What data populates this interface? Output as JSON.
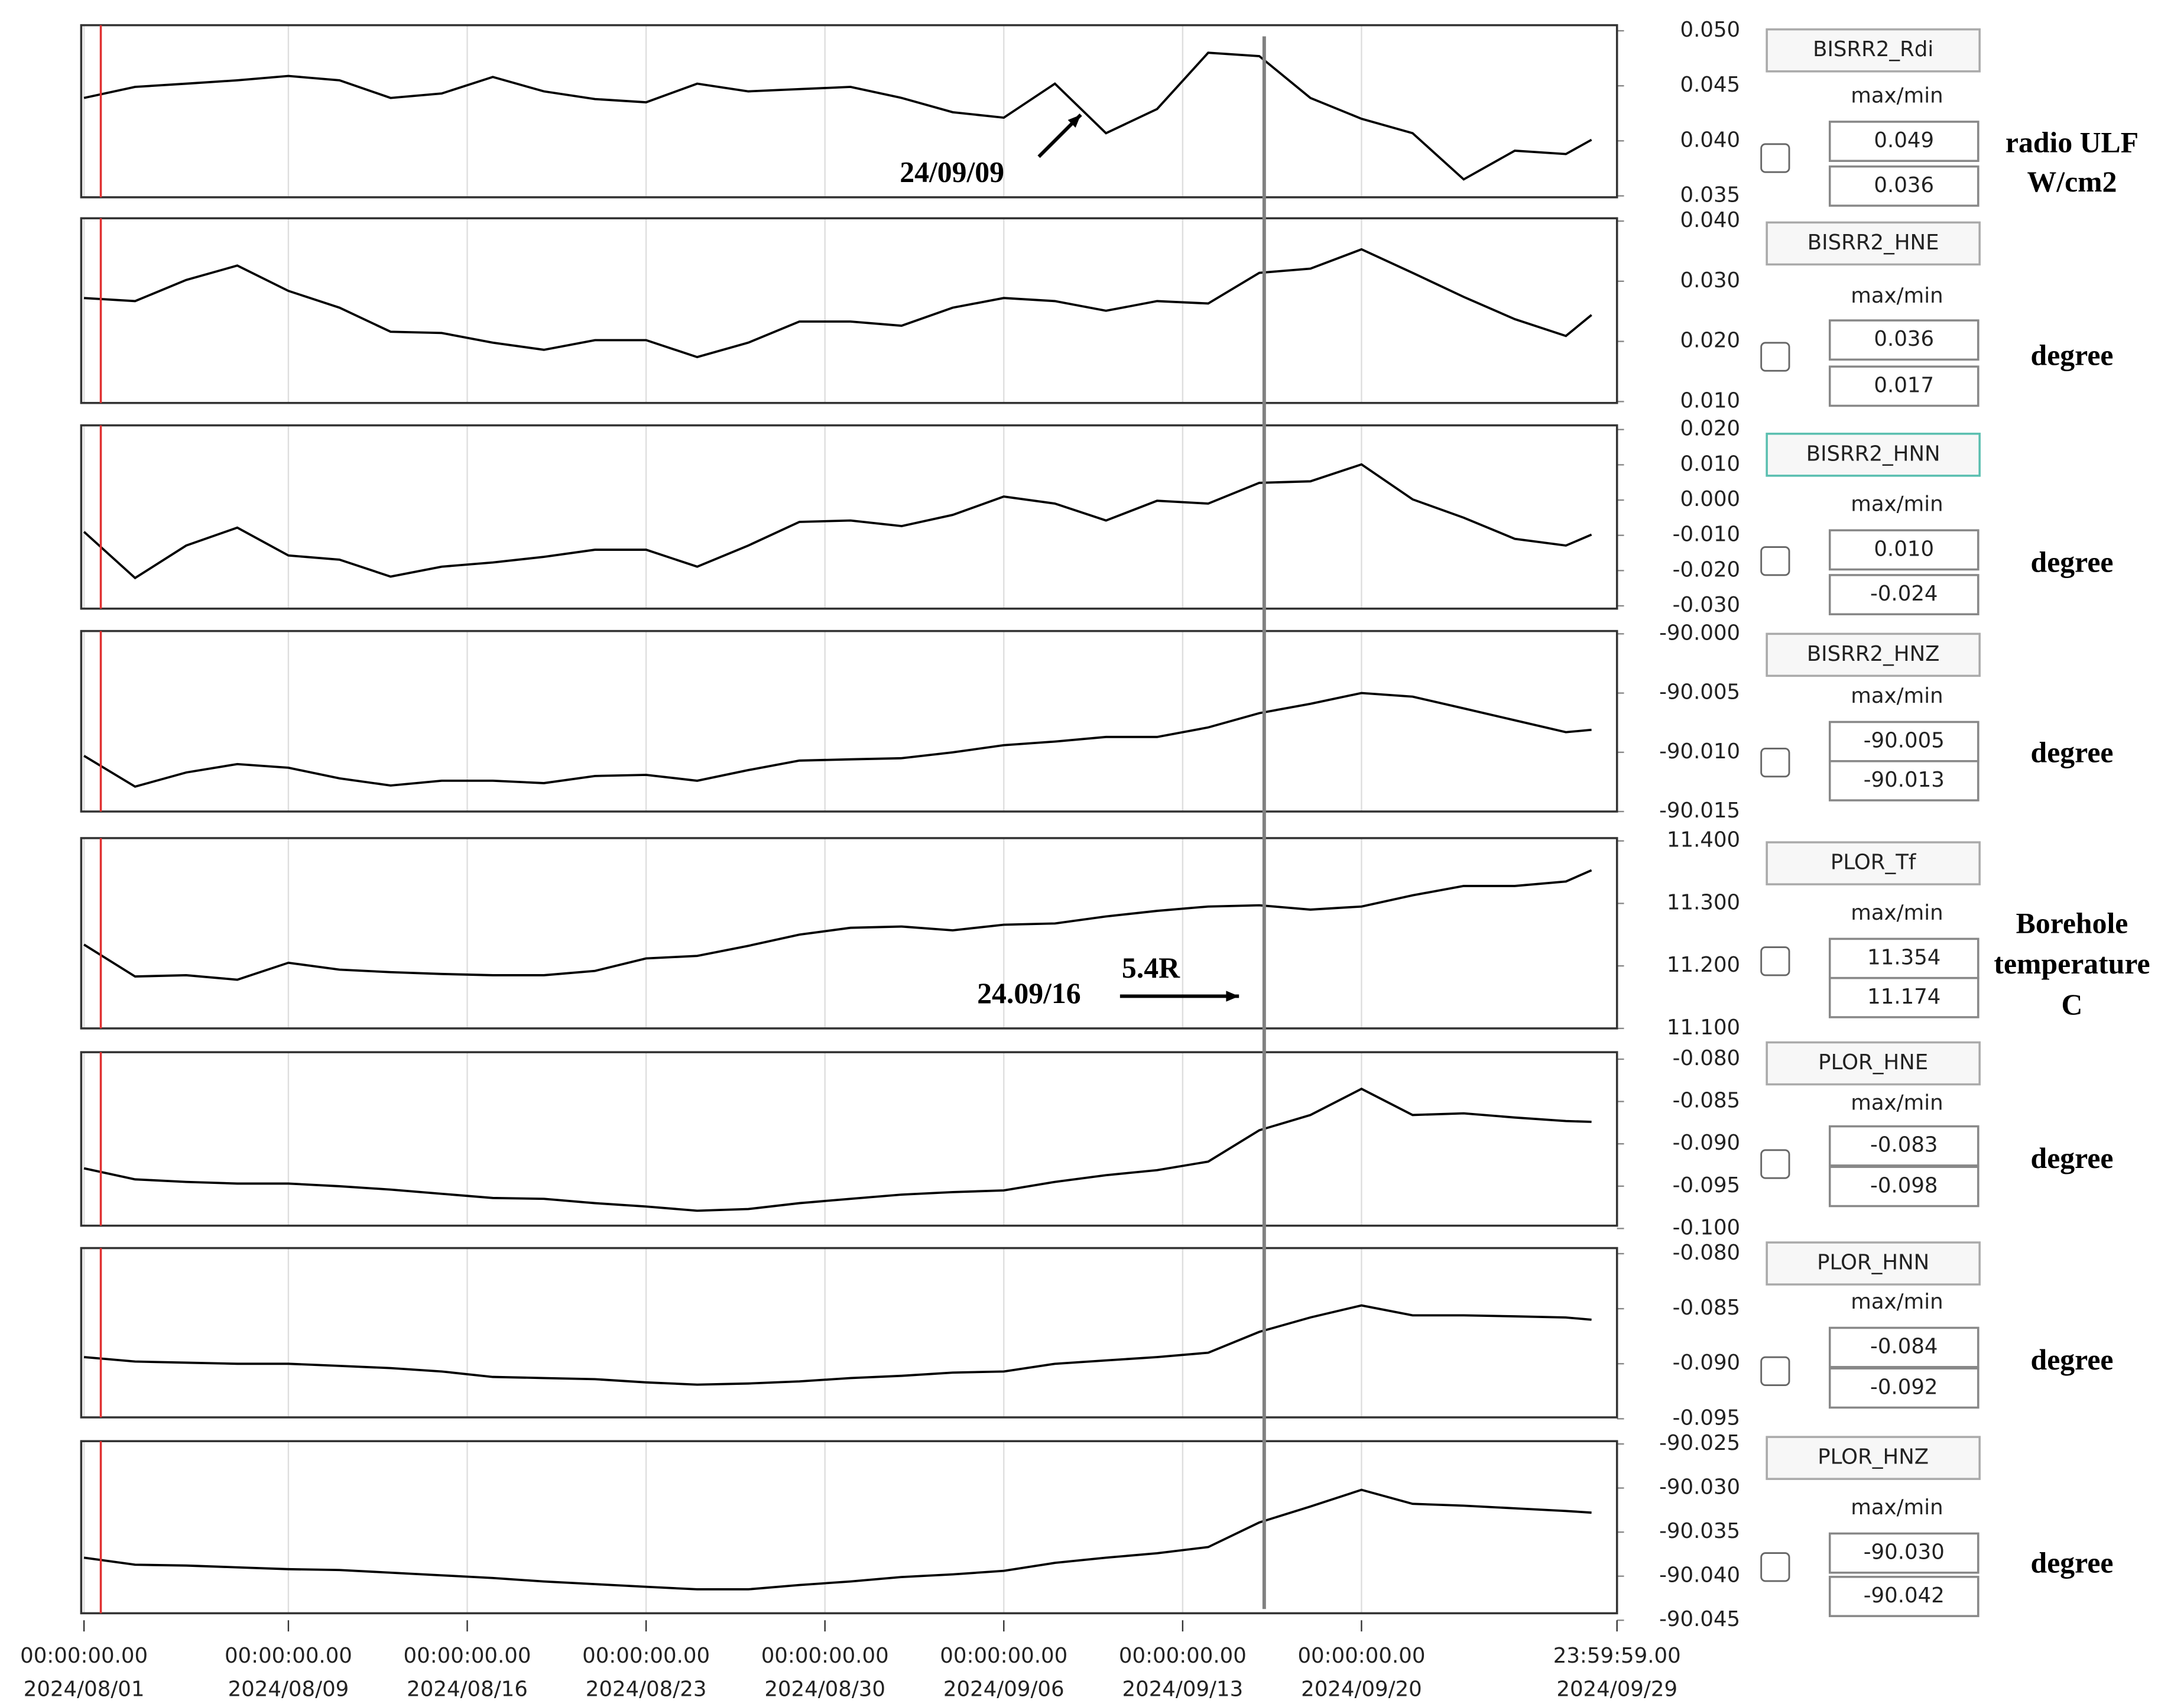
{
  "x_axis": {
    "xlim": [
      "2024/08/01 00:00:00.00",
      "2024/09/29 23:59:59.00"
    ],
    "xticks": [
      {
        "time": "00:00:00.00",
        "date": "2024/08/01"
      },
      {
        "time": "00:00:00.00",
        "date": "2024/08/09"
      },
      {
        "time": "00:00:00.00",
        "date": "2024/08/16"
      },
      {
        "time": "00:00:00.00",
        "date": "2024/08/23"
      },
      {
        "time": "00:00:00.00",
        "date": "2024/08/30"
      },
      {
        "time": "00:00:00.00",
        "date": "2024/09/06"
      },
      {
        "time": "00:00:00.00",
        "date": "2024/09/13"
      },
      {
        "time": "00:00:00.00",
        "date": "2024/09/20"
      },
      {
        "time": "23:59:59.00",
        "date": "2024/09/29"
      }
    ],
    "x": [
      "2024/08/01",
      "2024/08/03",
      "2024/08/05",
      "2024/08/07",
      "2024/08/09",
      "2024/08/11",
      "2024/08/13",
      "2024/08/15",
      "2024/08/17",
      "2024/08/19",
      "2024/08/21",
      "2024/08/23",
      "2024/08/25",
      "2024/08/27",
      "2024/08/29",
      "2024/08/31",
      "2024/09/02",
      "2024/09/04",
      "2024/09/06",
      "2024/09/08",
      "2024/09/10",
      "2024/09/12",
      "2024/09/14",
      "2024/09/16",
      "2024/09/18",
      "2024/09/20",
      "2024/09/22",
      "2024/09/24",
      "2024/09/26",
      "2024/09/28",
      "2024/09/29"
    ]
  },
  "chart_data": [
    {
      "type": "line",
      "name": "BISRR2_Rdi",
      "stat_label": "max/min",
      "max": 0.049,
      "min": 0.036,
      "unit": [
        "radio ULF",
        "W/cm2"
      ],
      "color": "#000000",
      "ylim": [
        0.035,
        0.05
      ],
      "yticks": [
        {
          "value": 0.05,
          "label": "0.050"
        },
        {
          "value": 0.045,
          "label": "0.045"
        },
        {
          "value": 0.04,
          "label": "0.040"
        },
        {
          "value": 0.035,
          "label": "0.035"
        }
      ],
      "values": [
        0.0439,
        0.0449,
        0.0452,
        0.0455,
        0.0459,
        0.0455,
        0.0439,
        0.0443,
        0.0458,
        0.0445,
        0.0438,
        0.0435,
        0.0452,
        0.0445,
        0.0447,
        0.0449,
        0.0439,
        0.0426,
        0.0421,
        0.0452,
        0.0407,
        0.0429,
        0.048,
        0.0477,
        0.0439,
        0.042,
        0.0407,
        0.0365,
        0.0391,
        0.0388,
        0.0401
      ],
      "annotations": [
        "24/09/09"
      ]
    },
    {
      "type": "line",
      "name": "BISRR2_HNE",
      "stat_label": "max/min",
      "max": 0.036,
      "min": 0.017,
      "unit": [
        "degree"
      ],
      "color": "#000000",
      "ylim": [
        0.01,
        0.04
      ],
      "yticks": [
        {
          "value": 0.04,
          "label": "0.040"
        },
        {
          "value": 0.03,
          "label": "0.030"
        },
        {
          "value": 0.02,
          "label": "0.020"
        },
        {
          "value": 0.01,
          "label": "0.010"
        }
      ],
      "values": [
        0.0272,
        0.0267,
        0.0302,
        0.0326,
        0.0284,
        0.0256,
        0.0216,
        0.0214,
        0.0198,
        0.0186,
        0.0202,
        0.0202,
        0.0174,
        0.0198,
        0.0233,
        0.0233,
        0.0226,
        0.0256,
        0.0272,
        0.0267,
        0.0251,
        0.0267,
        0.0263,
        0.0314,
        0.0321,
        0.0353,
        0.0314,
        0.0274,
        0.0237,
        0.0209,
        0.0244
      ]
    },
    {
      "type": "line",
      "name": "BISRR2_HNN",
      "stat_label": "max/min",
      "max": {
        "value": 0.01,
        "label": "0.010"
      },
      "min": -0.024,
      "unit": [
        "degree"
      ],
      "color": "#000000",
      "ylim": [
        -0.03,
        0.02
      ],
      "yticks": [
        {
          "value": 0.02,
          "label": "0.020"
        },
        {
          "value": 0.01,
          "label": "0.010"
        },
        {
          "value": 0,
          "label": "0.000"
        },
        {
          "value": -0.01,
          "label": "-0.010"
        },
        {
          "value": -0.02,
          "label": "-0.020"
        },
        {
          "value": -0.03,
          "label": "-0.030"
        }
      ],
      "values": [
        -0.009,
        -0.0221,
        -0.0129,
        -0.0078,
        -0.0157,
        -0.0169,
        -0.0217,
        -0.0189,
        -0.0177,
        -0.0161,
        -0.0141,
        -0.0141,
        -0.0189,
        -0.0129,
        -0.0062,
        -0.0058,
        -0.0074,
        -0.0042,
        0.001,
        -0.001,
        -0.0058,
        -0.0002,
        -0.001,
        0.0049,
        0.0053,
        0.0101,
        0.0002,
        -0.005,
        -0.011,
        -0.0129,
        -0.0098
      ]
    },
    {
      "type": "line",
      "name": "BISRR2_HNZ",
      "stat_label": "max/min",
      "max": -90.005,
      "min": -90.013,
      "unit": [
        "degree"
      ],
      "color": "#000000",
      "ylim": [
        -90.015,
        -90
      ],
      "yticks": [
        {
          "value": -90,
          "label": "-90.000"
        },
        -90.005,
        {
          "value": -90.01,
          "label": "-90.010"
        },
        -90.015
      ],
      "values": [
        -90.0103,
        -90.0129,
        -90.0117,
        -90.011,
        -90.0113,
        -90.0122,
        -90.0128,
        -90.0124,
        -90.0124,
        -90.0126,
        -90.012,
        -90.0119,
        -90.0124,
        -90.0115,
        -90.0107,
        -90.0106,
        -90.0105,
        -90.01,
        -90.0094,
        -90.0091,
        -90.0087,
        -90.0087,
        -90.0079,
        -90.0067,
        -90.0059,
        -90.005,
        -90.0053,
        -90.0063,
        -90.0073,
        -90.0083,
        -90.0081
      ]
    },
    {
      "type": "line",
      "name": "PLOR_Tf",
      "stat_label": "max/min",
      "max": 11.354,
      "min": 11.174,
      "unit": [
        "Borehole",
        "temperature",
        "C"
      ],
      "color": "#000000",
      "ylim": [
        11.1,
        11.4
      ],
      "yticks": [
        {
          "value": 11.4,
          "label": "11.400"
        },
        {
          "value": 11.3,
          "label": "11.300"
        },
        {
          "value": 11.2,
          "label": "11.200"
        },
        {
          "value": 11.1,
          "label": "11.100"
        }
      ],
      "values": [
        11.234,
        11.183,
        11.185,
        11.178,
        11.205,
        11.194,
        11.19,
        11.187,
        11.185,
        11.185,
        11.192,
        11.212,
        11.216,
        11.232,
        11.25,
        11.261,
        11.263,
        11.257,
        11.266,
        11.268,
        11.279,
        11.288,
        11.295,
        11.297,
        11.29,
        11.295,
        11.313,
        11.328,
        11.328,
        11.335,
        11.353
      ],
      "annotations": [
        "24.09/16",
        "5.4R"
      ]
    },
    {
      "type": "line",
      "name": "PLOR_HNE",
      "stat_label": "max/min",
      "max": -0.083,
      "min": -0.098,
      "unit": [
        "degree"
      ],
      "color": "#000000",
      "ylim": [
        -0.1,
        -0.08
      ],
      "yticks": [
        {
          "value": -0.08,
          "label": "-0.080"
        },
        -0.085,
        {
          "value": -0.09,
          "label": "-0.090"
        },
        -0.095,
        {
          "value": -0.1,
          "label": "-0.100"
        }
      ],
      "values": [
        -0.0929,
        -0.0942,
        -0.0945,
        -0.0947,
        -0.0947,
        -0.095,
        -0.0954,
        -0.0959,
        -0.0964,
        -0.0965,
        -0.097,
        -0.0974,
        -0.0979,
        -0.0977,
        -0.097,
        -0.0965,
        -0.096,
        -0.0957,
        -0.0955,
        -0.0945,
        -0.0937,
        -0.0931,
        -0.0921,
        -0.0884,
        -0.0866,
        -0.0835,
        -0.0866,
        -0.0864,
        -0.0869,
        -0.0873,
        -0.0874
      ]
    },
    {
      "type": "line",
      "name": "PLOR_HNN",
      "stat_label": "max/min",
      "max": -0.084,
      "min": -0.092,
      "unit": [
        "degree"
      ],
      "color": "#000000",
      "ylim": [
        -0.095,
        -0.08
      ],
      "yticks": [
        {
          "value": -0.08,
          "label": "-0.080"
        },
        -0.085,
        {
          "value": -0.09,
          "label": "-0.090"
        },
        -0.095
      ],
      "values": [
        -0.0894,
        -0.0898,
        -0.0899,
        -0.09,
        -0.09,
        -0.0902,
        -0.0904,
        -0.0907,
        -0.0912,
        -0.0913,
        -0.0914,
        -0.0917,
        -0.0919,
        -0.0918,
        -0.0916,
        -0.0913,
        -0.0911,
        -0.0908,
        -0.0907,
        -0.09,
        -0.0897,
        -0.0894,
        -0.089,
        -0.0871,
        -0.0858,
        -0.0847,
        -0.0856,
        -0.0856,
        -0.0857,
        -0.0858,
        -0.086
      ]
    },
    {
      "type": "line",
      "name": "PLOR_HNZ",
      "stat_label": "max/min",
      "max": {
        "value": -90.03,
        "label": "-90.030"
      },
      "min": -90.042,
      "unit": [
        "degree"
      ],
      "color": "#000000",
      "ylim": [
        -90.045,
        -90.025
      ],
      "yticks": [
        -90.025,
        {
          "value": -90.03,
          "label": "-90.030"
        },
        -90.035,
        {
          "value": -90.04,
          "label": "-90.040"
        },
        -90.045
      ],
      "values": [
        -90.0379,
        -90.0387,
        -90.0388,
        -90.039,
        -90.0392,
        -90.0393,
        -90.0396,
        -90.0399,
        -90.0402,
        -90.0406,
        -90.0409,
        -90.0412,
        -90.0415,
        -90.0415,
        -90.041,
        -90.0406,
        -90.0401,
        -90.0398,
        -90.0394,
        -90.0385,
        -90.0379,
        -90.0374,
        -90.0367,
        -90.0339,
        -90.0321,
        -90.0302,
        -90.0318,
        -90.032,
        -90.0323,
        -90.0326,
        -90.0328
      ]
    }
  ]
}
